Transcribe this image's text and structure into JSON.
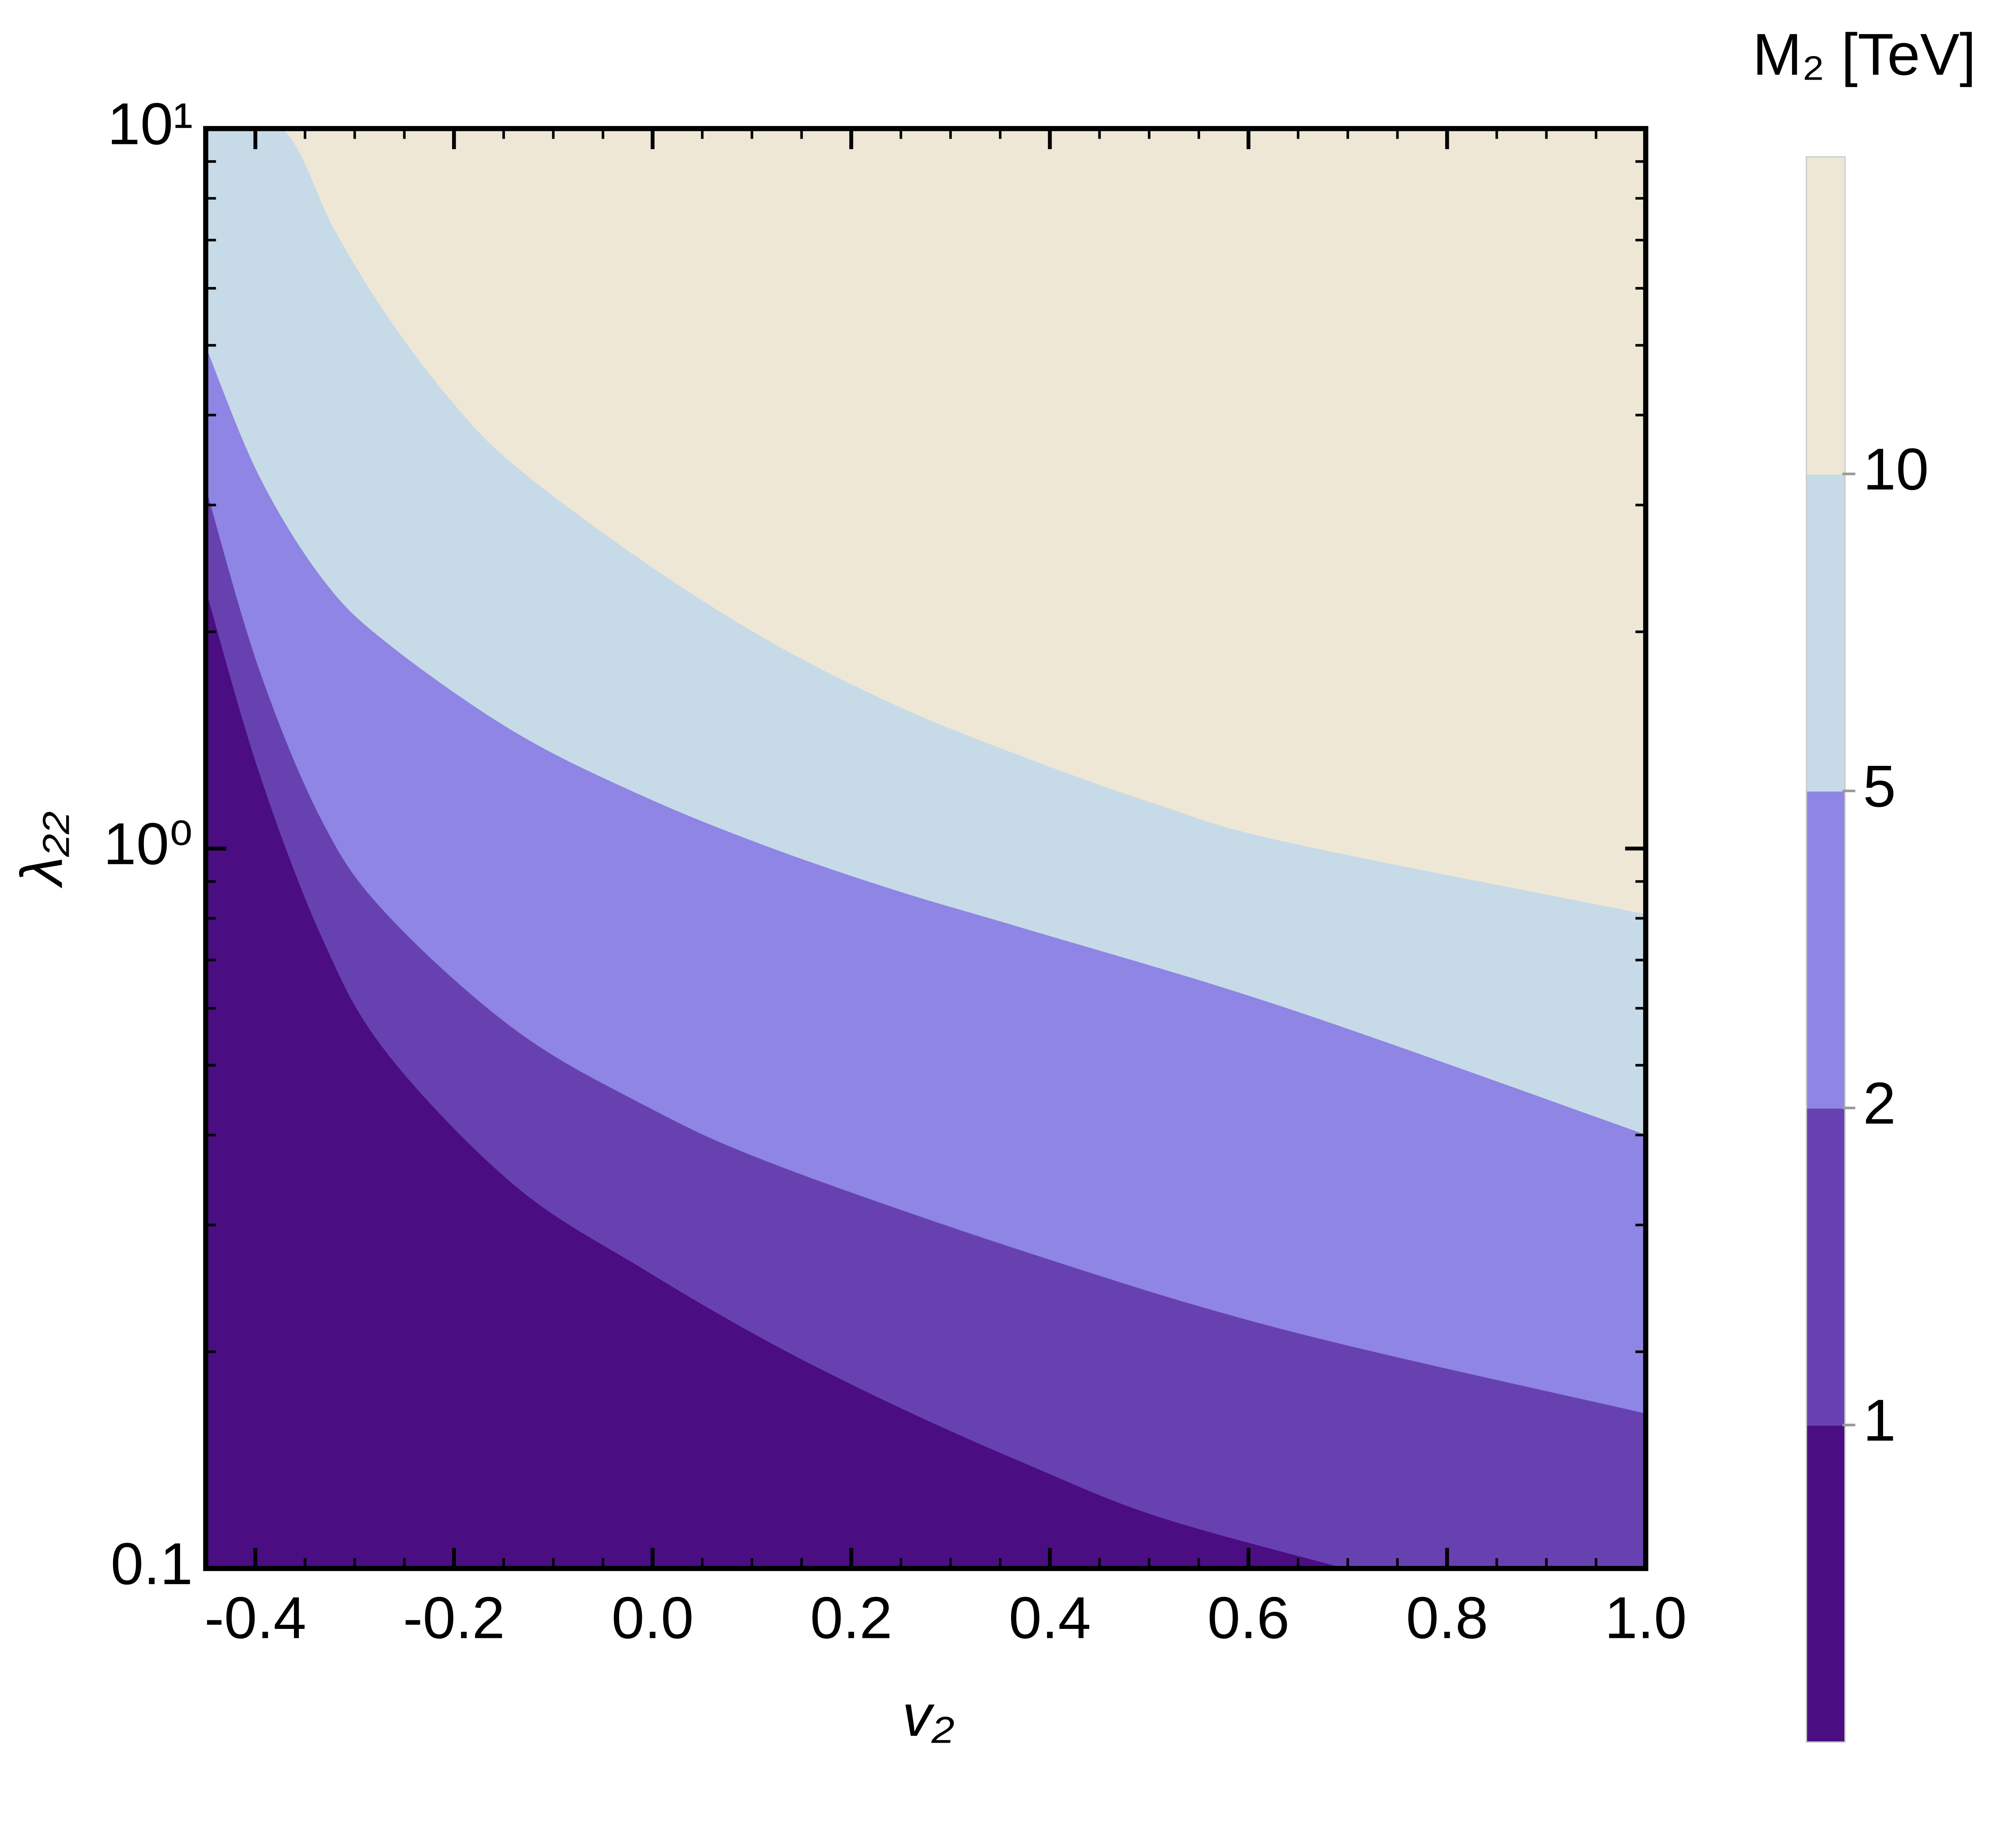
{
  "chart_data": {
    "type": "contour",
    "xlabel": "v₂",
    "ylabel": "λ₂₂",
    "xlim": [
      -0.45,
      1.0
    ],
    "xticks": [
      -0.4,
      -0.2,
      {
        "value": 0,
        "label": "0.0"
      },
      0.2,
      0.4,
      0.6,
      0.8,
      {
        "value": 1,
        "label": "1.0"
      }
    ],
    "ylim": [
      0.1,
      10
    ],
    "yscale": "log",
    "yticks": [
      0.1,
      {
        "value": 1,
        "label": "10⁰"
      },
      {
        "value": 10,
        "label": "10¹"
      }
    ],
    "top_color": "#efe7d6",
    "colorbar": {
      "title": "M₂ [TeV]",
      "levels": [
        1,
        2,
        5,
        10
      ]
    },
    "series": [
      {
        "color": "#4a0e82",
        "x": [
          -0.45,
          -0.397,
          -0.333,
          -0.268,
          -0.139,
          -0.009,
          0.12,
          0.249,
          0.379,
          0.508,
          0.696
        ],
        "values": [
          2.28,
          1.28,
          0.75,
          0.52,
          0.34,
          0.26,
          0.205,
          0.167,
          0.139,
          0.118,
          0.1
        ]
      },
      {
        "color": "#6841b0",
        "x": [
          -0.45,
          -0.397,
          -0.333,
          -0.268,
          -0.139,
          -0.009,
          0.12,
          0.379,
          0.638,
          1.0
        ],
        "values": [
          3.16,
          1.78,
          1.09,
          0.81,
          0.56,
          0.44,
          0.365,
          0.274,
          0.214,
          0.164
        ]
      },
      {
        "color": "#8e85e4",
        "x": [
          -0.45,
          -0.397,
          -0.333,
          -0.268,
          -0.139,
          -0.009,
          0.12,
          0.249,
          0.379,
          0.638,
          1.0
        ],
        "values": [
          4.97,
          3.3,
          2.37,
          1.93,
          1.45,
          1.18,
          1.0,
          0.87,
          0.77,
          0.6,
          0.4
        ]
      },
      {
        "color": "#c7dae7",
        "x": [
          -0.45,
          -0.374,
          -0.32,
          -0.268,
          -0.204,
          -0.139,
          -0.009,
          0.12,
          0.249,
          0.379,
          0.508,
          0.638,
          1.0
        ],
        "values": [
          10,
          10,
          7.2,
          5.5,
          4.2,
          3.4,
          2.5,
          1.93,
          1.57,
          1.33,
          1.15,
          1.02,
          0.81
        ]
      }
    ]
  }
}
